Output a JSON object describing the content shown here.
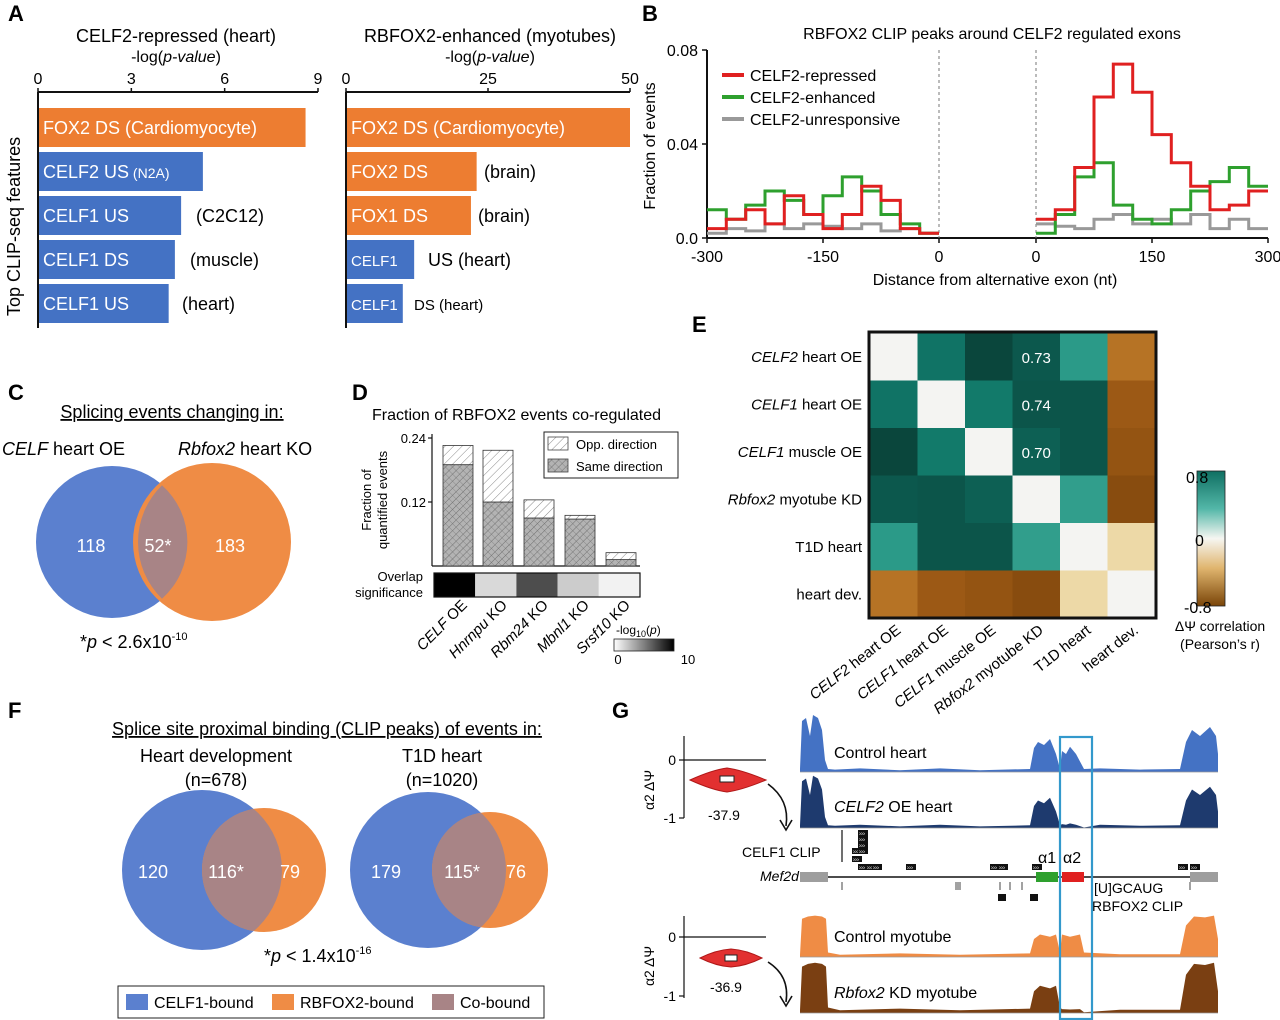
{
  "colors": {
    "blue": "#4472c4",
    "orange": "#ed7d31",
    "venn_blue": "#5b80cf",
    "venn_orange": "#ef8c45",
    "overlap": "#a88486",
    "red": "#e02020",
    "green": "#2ea02e",
    "gray": "#999999",
    "teal": "#0f6f62",
    "brown": "#9a5a12",
    "box": "#3399cc"
  },
  "panel_labels": [
    "A",
    "B",
    "C",
    "D",
    "E",
    "F",
    "G"
  ],
  "panel_a": {
    "ylabel": "Top CLIP-seq features",
    "left": {
      "title": "CELF2-repressed (heart)",
      "xlabel": "-log(p-value)",
      "ticks": [
        "0",
        "3",
        "6",
        "9"
      ],
      "xmax": 9
    },
    "right": {
      "title": "RBFOX2-enhanced (myotubes)",
      "xlabel": "-log(p-value)",
      "ticks": [
        "0",
        "25",
        "50"
      ],
      "xmax": 50
    }
  },
  "panel_b": {
    "title": "RBFOX2 CLIP peaks around CELF2 regulated exons",
    "ylabel": "Fraction of events",
    "xlabel": "Distance from alternative exon (nt)",
    "xticks": [
      "-300",
      "-150",
      "0",
      "0",
      "150",
      "300"
    ],
    "yticks": [
      "0.0",
      "0.04",
      "0.08"
    ]
  },
  "panel_c": {
    "title": "Splicing events changing in:",
    "left_label_italic": "CELF",
    "left_label_rest": " heart OE",
    "right_label_italic": "Rbfox2",
    "right_label_rest": " heart KO",
    "left_only": "118",
    "overlap": "52*",
    "right_only": "183",
    "pvalue_prefix": "*",
    "pvalue_text": "p < 2.6x10",
    "pvalue_exp": "-10"
  },
  "panel_d": {
    "title": "Fraction of RBFOX2 events co-regulated",
    "ylabel_1": "Fraction of",
    "ylabel_2": "quantified events",
    "yticks": [
      "0.24",
      "0.12"
    ],
    "legend": [
      "Opp. direction",
      "Same direction"
    ],
    "overlap_label_1": "Overlap",
    "overlap_label_2": "significance",
    "scale_label": "-log10(p)",
    "scale_min": "0",
    "scale_max": "10"
  },
  "panel_e": {
    "row_labels_italic": [
      "CELF2",
      "CELF1",
      "CELF1",
      "Rbfox2",
      "",
      ""
    ],
    "row_labels_rest": [
      " heart OE",
      " heart OE",
      " muscle OE",
      " myotube KD",
      "T1D heart",
      "heart dev."
    ],
    "scale_max": "0.8",
    "scale_mid": "0",
    "scale_min": "-0.8",
    "scale_label_1": "ΔΨ correlation",
    "scale_label_2": "(Pearson’s r)"
  },
  "panel_f": {
    "title": "Splice site proximal binding (CLIP peaks) of events in:",
    "left_title": "Heart development",
    "left_n": "(n=678)",
    "right_title": "T1D heart",
    "right_n": "(n=1020)",
    "left_vals": [
      "120",
      "116*",
      "79"
    ],
    "right_vals": [
      "179",
      "115*",
      "76"
    ],
    "pvalue_prefix": "*",
    "pvalue_text": "p < 1.4x10",
    "pvalue_exp": "-16",
    "legend": [
      "CELF1-bound",
      "RBFOX2-bound",
      "Co-bound"
    ]
  },
  "panel_g": {
    "ylabel": "α2 ΔΨ",
    "y_top": "0",
    "y_bot": "-1",
    "top_value": "-37.9",
    "bottom_value": "-36.9",
    "track_labels": [
      "Control heart",
      "CELF2 OE heart",
      "Control myotube",
      "Rbfox2 KD myotube"
    ],
    "celf1_clip": "CELF1 CLIP",
    "gene": "Mef2d",
    "alpha1": "α1",
    "alpha2": "α2",
    "motif": "[U]GCAUG",
    "rbfox2_clip": "RBFOX2 CLIP"
  },
  "chart_data": [
    {
      "type": "bar",
      "title": "CELF2-repressed (heart)",
      "xlabel": "-log(p-value)",
      "ylabel": "Top CLIP-seq features",
      "orientation": "horizontal",
      "xlim": [
        0,
        9
      ],
      "categories": [
        "FOX2 DS (Cardiomyocyte)",
        "CELF2 US (N2A)",
        "CELF1 US (C2C12)",
        "CELF1 DS (muscle)",
        "CELF1 US (heart)"
      ],
      "cat_main": [
        "FOX2 DS (Cardiomyocyte)",
        "CELF2 US",
        "CELF1 US",
        "CELF1 DS",
        "CELF1 US"
      ],
      "cat_inner_small": [
        "",
        "(N2A)",
        "",
        "",
        ""
      ],
      "cat_side": [
        "",
        "",
        "(C2C12)",
        "(muscle)",
        "(heart)"
      ],
      "bar_colors": [
        "orange",
        "blue",
        "blue",
        "blue",
        "blue"
      ],
      "values": [
        8.6,
        5.3,
        4.6,
        4.4,
        4.2
      ]
    },
    {
      "type": "bar",
      "title": "RBFOX2-enhanced (myotubes)",
      "xlabel": "-log(p-value)",
      "orientation": "horizontal",
      "xlim": [
        0,
        50
      ],
      "categories": [
        "FOX2 DS (Cardiomyocyte)",
        "FOX2 DS (brain)",
        "FOX1 DS (brain)",
        "CELF1 US (heart)",
        "CELF1 DS (heart)"
      ],
      "cat_main": [
        "FOX2 DS (Cardiomyocyte)",
        "FOX2 DS",
        "FOX1 DS",
        "CELF1",
        "CELF1"
      ],
      "cat_side": [
        "",
        "(brain)",
        "(brain)",
        "US (heart)",
        "DS (heart)"
      ],
      "bar_colors": [
        "orange",
        "orange",
        "orange",
        "blue",
        "blue"
      ],
      "values": [
        50,
        23,
        22,
        12,
        10
      ]
    },
    {
      "type": "line",
      "title": "RBFOX2 CLIP peaks around CELF2 regulated exons",
      "xlabel": "Distance from alternative exon (nt)",
      "ylabel": "Fraction of events",
      "ylim": [
        0,
        0.08
      ],
      "x_upstream": [
        -300,
        -275,
        -250,
        -225,
        -200,
        -175,
        -150,
        -125,
        -100,
        -75,
        -50,
        -25,
        0
      ],
      "x_downstream": [
        0,
        25,
        50,
        75,
        100,
        125,
        150,
        175,
        200,
        225,
        250,
        275,
        300
      ],
      "series": [
        {
          "name": "CELF2-repressed",
          "color": "red",
          "upstream": [
            0.004,
            0.008,
            0.012,
            0.006,
            0.018,
            0.01,
            0.004,
            0.01,
            0.022,
            0.016,
            0.004,
            0.002,
            0.006
          ],
          "downstream": [
            0.008,
            0.012,
            0.03,
            0.06,
            0.074,
            0.062,
            0.044,
            0.032,
            0.022,
            0.012,
            0.014,
            0.02,
            0.014
          ]
        },
        {
          "name": "CELF2-enhanced",
          "color": "green",
          "upstream": [
            0.012,
            0.008,
            0.014,
            0.02,
            0.016,
            0.01,
            0.018,
            0.026,
            0.02,
            0.01,
            0.006,
            0.002,
            0.002
          ],
          "downstream": [
            0.002,
            0.01,
            0.026,
            0.032,
            0.014,
            0.008,
            0.006,
            0.012,
            0.02,
            0.024,
            0.03,
            0.022,
            0.028
          ]
        },
        {
          "name": "CELF2-unresponsive",
          "color": "gray",
          "upstream": [
            0.002,
            0.004,
            0.003,
            0.006,
            0.004,
            0.006,
            0.005,
            0.004,
            0.006,
            0.003,
            0.004,
            0.002,
            0.002
          ],
          "downstream": [
            0.006,
            0.005,
            0.004,
            0.008,
            0.01,
            0.006,
            0.008,
            0.006,
            0.01,
            0.004,
            0.008,
            0.004,
            0.003
          ]
        }
      ],
      "legend": "top-left"
    },
    {
      "type": "bar",
      "title": "Fraction of RBFOX2 events co-regulated",
      "ylim": [
        0,
        0.24
      ],
      "categories": [
        "CELF OE",
        "Hnrnpu KO",
        "Rbm24 KO",
        "Mbnl1 KO",
        "Srsf10 KO"
      ],
      "categories_italic": [
        "CELF",
        "Hnrnpu",
        "Rbm24",
        "Mbnl1",
        "Srsf10"
      ],
      "categories_rest": [
        " OE",
        " KO",
        " KO",
        " KO",
        " KO"
      ],
      "series": [
        {
          "name": "Same direction",
          "values": [
            0.19,
            0.12,
            0.09,
            0.088,
            0.012
          ]
        },
        {
          "name": "Opp. direction",
          "values": [
            0.036,
            0.097,
            0.034,
            0.007,
            0.013
          ]
        }
      ],
      "overlap_significance": [
        10,
        1.5,
        7,
        2,
        0.5
      ]
    },
    {
      "type": "heatmap",
      "labels": [
        "CELF2 heart OE",
        "CELF1 heart OE",
        "CELF1 muscle OE",
        "Rbfox2 myotube KD",
        "T1D heart",
        "heart dev."
      ],
      "zlim": [
        -0.8,
        0.8
      ],
      "values": [
        [
          1,
          0.62,
          0.8,
          0.73,
          0.42,
          -0.52
        ],
        [
          0.62,
          1,
          0.58,
          0.74,
          0.74,
          -0.62
        ],
        [
          0.8,
          0.58,
          1,
          0.7,
          0.74,
          -0.66
        ],
        [
          0.73,
          0.74,
          0.7,
          1,
          0.4,
          -0.72
        ],
        [
          0.42,
          0.74,
          0.74,
          0.4,
          1,
          -0.22
        ],
        [
          -0.52,
          -0.62,
          -0.66,
          -0.72,
          -0.22,
          1
        ]
      ],
      "printed_cells": [
        [
          0,
          3,
          "0.73"
        ],
        [
          1,
          3,
          "0.74"
        ],
        [
          2,
          3,
          "0.70"
        ]
      ]
    }
  ]
}
